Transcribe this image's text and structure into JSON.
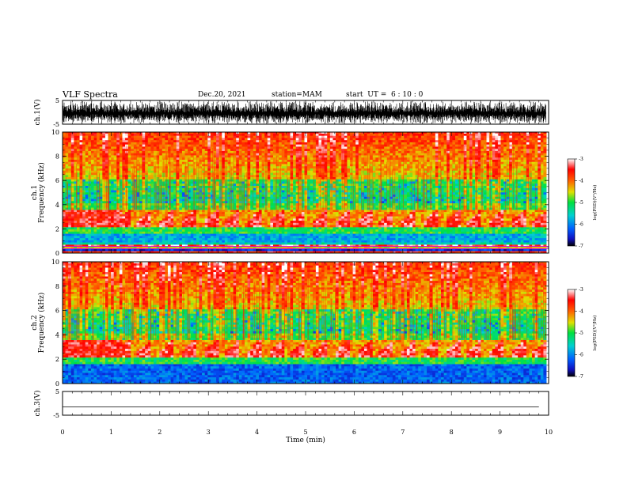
{
  "header": {
    "title": "VLF Spectra",
    "date": "Dec.20, 2021",
    "station": "station=MAM",
    "start": "start  UT =  6 : 10 : 0"
  },
  "chart_data": [
    {
      "type": "line",
      "name": "ch1-waveform",
      "ylabel": "ch.1(V)",
      "ylim": [
        -5,
        5
      ],
      "yticks": [
        "5",
        "-5"
      ],
      "xlim": [
        0,
        10
      ]
    },
    {
      "type": "heatmap",
      "name": "ch1-spectrogram",
      "ylabel_line1": "ch.1",
      "ylabel_line2": "Frequency (kHz)",
      "ylim": [
        0,
        10
      ],
      "yticks": [
        "0",
        "2",
        "4",
        "6",
        "8",
        "10"
      ],
      "xlim": [
        0,
        10
      ],
      "bands": [
        {
          "kHz_low": 0.0,
          "kHz_high": 0.8,
          "level": "mixed"
        },
        {
          "kHz_low": 0.8,
          "kHz_high": 1.5,
          "level": -5.8
        },
        {
          "kHz_low": 1.5,
          "kHz_high": 2.0,
          "level": -5.0
        },
        {
          "kHz_low": 2.0,
          "kHz_high": 3.5,
          "level": -3.8
        },
        {
          "kHz_low": 3.5,
          "kHz_high": 10.0,
          "level": -4.6
        }
      ],
      "colorbar": {
        "label": "log(PSD)(V²/Hz)",
        "range": [
          -7,
          -3
        ],
        "ticks": [
          "-3",
          "-4",
          "-5",
          "-6",
          "-7"
        ]
      }
    },
    {
      "type": "heatmap",
      "name": "ch2-spectrogram",
      "ylabel_line1": "ch.2",
      "ylabel_line2": "Frequency (kHz)",
      "ylim": [
        0,
        10
      ],
      "yticks": [
        "0",
        "2",
        "4",
        "6",
        "8",
        "10"
      ],
      "xlim": [
        0,
        10
      ],
      "bands": [
        {
          "kHz_low": 0.0,
          "kHz_high": 1.5,
          "level": -6.2
        },
        {
          "kHz_low": 1.5,
          "kHz_high": 2.0,
          "level": -5.0
        },
        {
          "kHz_low": 2.0,
          "kHz_high": 3.5,
          "level": -3.8
        },
        {
          "kHz_low": 3.5,
          "kHz_high": 10.0,
          "level": -4.8
        }
      ],
      "colorbar": {
        "label": "log(PSD)(V²/Hz)",
        "range": [
          -7,
          -3
        ],
        "ticks": [
          "-3",
          "-4",
          "-5",
          "-6",
          "-7"
        ]
      }
    },
    {
      "type": "line",
      "name": "ch3-waveform",
      "ylabel": "ch.3(V)",
      "ylim": [
        -5,
        5
      ],
      "yticks": [
        "5",
        "-5"
      ],
      "x": [
        0,
        9.8
      ],
      "y": [
        -1.5,
        -1.5
      ],
      "xlim": [
        0,
        10
      ]
    }
  ],
  "xaxis": {
    "label": "Time (min)",
    "ticks": [
      "0",
      "1",
      "2",
      "3",
      "4",
      "5",
      "6",
      "7",
      "8",
      "9",
      "10"
    ],
    "range": [
      0,
      10
    ]
  }
}
